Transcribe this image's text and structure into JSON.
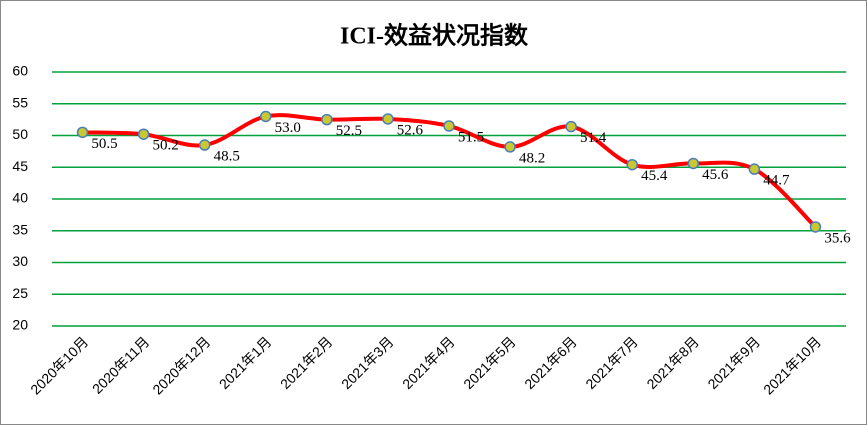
{
  "chart_data": {
    "type": "line",
    "title": "ICI-效益状况指数",
    "categories": [
      "2020年10月",
      "2020年11月",
      "2020年12月",
      "2021年1月",
      "2021年2月",
      "2021年3月",
      "2021年4月",
      "2021年5月",
      "2021年6月",
      "2021年7月",
      "2021年8月",
      "2021年9月",
      "2021年10月"
    ],
    "values": [
      50.5,
      50.2,
      48.5,
      53.0,
      52.5,
      52.6,
      51.5,
      48.2,
      51.4,
      45.4,
      45.6,
      44.7,
      35.6
    ],
    "value_labels": [
      "50.5",
      "50.2",
      "48.5",
      "53.0",
      "52.5",
      "52.6",
      "51.5",
      "48.2",
      "51.4",
      "45.4",
      "45.6",
      "44.7",
      "35.6"
    ],
    "color": "#ff0000",
    "marker_color": "#c8c832",
    "ylim": [
      20,
      60
    ],
    "yticks": [
      20,
      25,
      30,
      35,
      40,
      45,
      50,
      55,
      60
    ],
    "grid": true
  }
}
